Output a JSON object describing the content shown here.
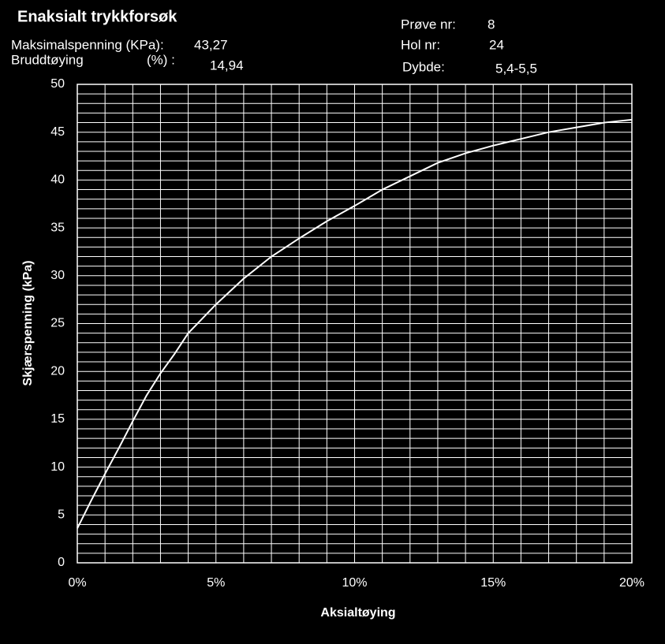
{
  "header": {
    "title": "Enaksialt trykkforsøk",
    "max_label": "Maksimalspenning  (KPa):",
    "max_value": "43,27",
    "strain_label": "Bruddtøying",
    "strain_unit": "(%) :",
    "strain_value": "14,94",
    "sample_label": "Prøve  nr:",
    "sample_value": "8",
    "hole_label": "Hol nr:",
    "hole_value": "24",
    "depth_label": "Dybde:",
    "depth_value": "5,4-5,5"
  },
  "chart_data": {
    "type": "line",
    "x_label": "Aksialtøying",
    "y_label": "Skjærspenning  (kPa)",
    "x": [
      0,
      0.5,
      1,
      1.5,
      2,
      2.5,
      3,
      3.5,
      4,
      5,
      6,
      7,
      8,
      9,
      10,
      11,
      12,
      13,
      14,
      15,
      16,
      17,
      18,
      19,
      20
    ],
    "values": [
      3.6,
      6.5,
      9.3,
      12,
      14.8,
      17.5,
      19.8,
      21.8,
      24,
      27,
      29.7,
      32,
      33.9,
      35.7,
      37.3,
      39,
      40.4,
      41.8,
      42.8,
      43.6,
      44.3,
      45,
      45.5,
      46,
      46.3
    ],
    "color": "#ffffff",
    "xlim": [
      0,
      20
    ],
    "xticks": [
      {
        "value": 0,
        "label": "0%"
      },
      {
        "value": 5,
        "label": "5%"
      },
      {
        "value": 10,
        "label": "10%"
      },
      {
        "value": 15,
        "label": "15%"
      },
      {
        "value": 20,
        "label": "20%"
      }
    ],
    "ylim": [
      0,
      50
    ],
    "yticks": [
      0,
      5,
      10,
      15,
      20,
      25,
      30,
      35,
      40,
      45,
      50
    ],
    "grid": true
  }
}
